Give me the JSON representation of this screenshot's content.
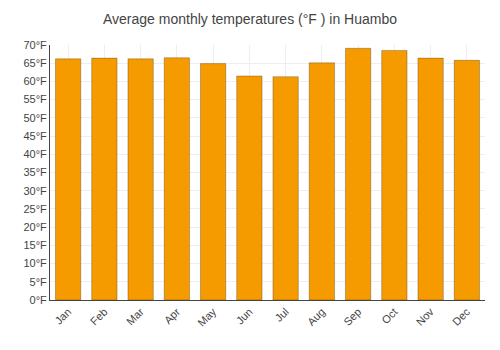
{
  "chart_data": {
    "type": "bar",
    "title": "Average monthly temperatures (°F ) in Huambo",
    "categories": [
      "Jan",
      "Feb",
      "Mar",
      "Apr",
      "May",
      "Jun",
      "Jul",
      "Aug",
      "Sep",
      "Oct",
      "Nov",
      "Dec"
    ],
    "values": [
      66.2,
      66.4,
      66.2,
      66.5,
      64.9,
      61.5,
      61.3,
      65.1,
      69.1,
      68.5,
      66.4,
      65.8
    ],
    "color": "#F59B00",
    "ylim": [
      0,
      70
    ],
    "yticks": [
      {
        "value": 0,
        "label": "0°F"
      },
      {
        "value": 5,
        "label": "5°F"
      },
      {
        "value": 10,
        "label": "10°F"
      },
      {
        "value": 15,
        "label": "15°F"
      },
      {
        "value": 20,
        "label": "20°F"
      },
      {
        "value": 25,
        "label": "25°F"
      },
      {
        "value": 30,
        "label": "30°F"
      },
      {
        "value": 35,
        "label": "35°F"
      },
      {
        "value": 40,
        "label": "40°F"
      },
      {
        "value": 45,
        "label": "45°F"
      },
      {
        "value": 50,
        "label": "50°F"
      },
      {
        "value": 55,
        "label": "55°F"
      },
      {
        "value": 60,
        "label": "60°F"
      },
      {
        "value": 65,
        "label": "65°F"
      },
      {
        "value": 70,
        "label": "70°F"
      }
    ],
    "grid": true
  }
}
